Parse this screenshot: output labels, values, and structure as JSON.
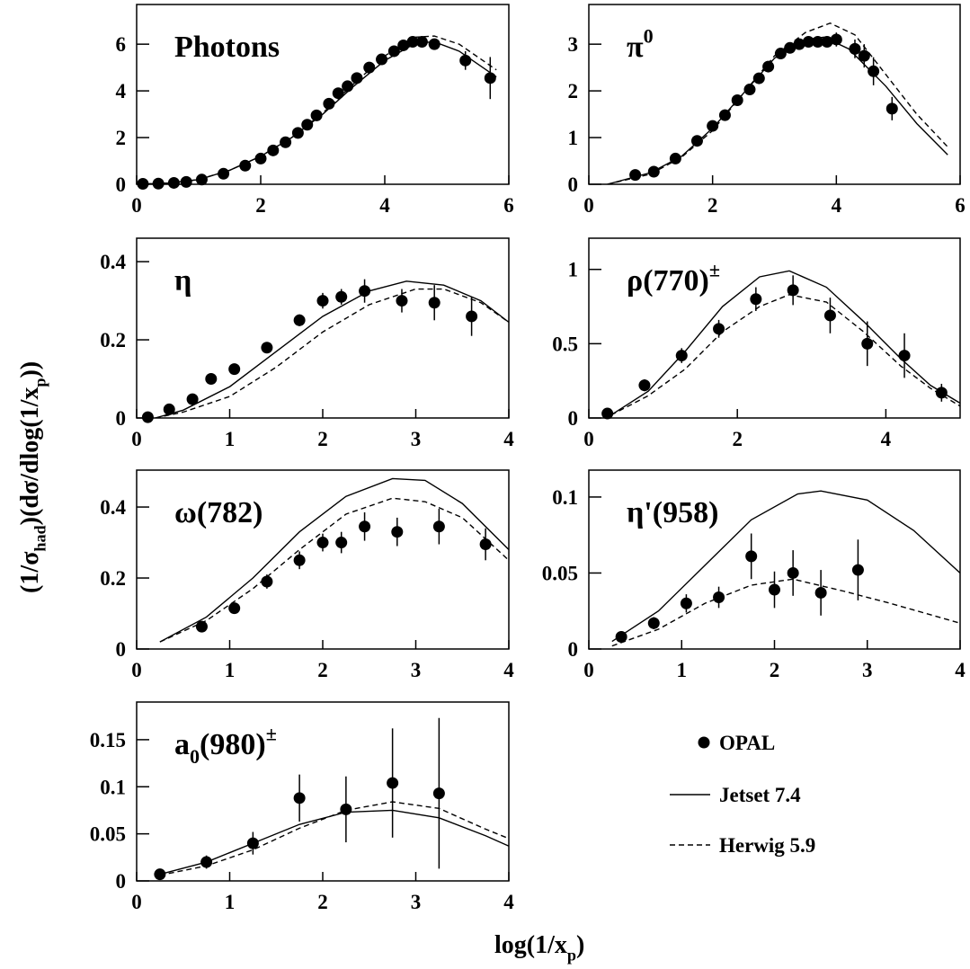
{
  "ylabel": [
    {
      "text": "(1/σ"
    },
    {
      "sub": "had"
    },
    {
      "text": ")(dσ/dlog(1/x"
    },
    {
      "sub": "p"
    },
    {
      "text": "))"
    }
  ],
  "xlabel": [
    {
      "text": "log(1/x"
    },
    {
      "sub": "p"
    },
    {
      "text": ")"
    }
  ],
  "chart_data": [
    {
      "type": "scatter",
      "title": [
        {
          "text": "Photons"
        }
      ],
      "xlim": [
        0,
        6
      ],
      "ylim": [
        0,
        7.7
      ],
      "xticks": [
        0,
        2,
        4,
        6
      ],
      "yticks": [
        0,
        2,
        4,
        6
      ],
      "series": [
        {
          "name": "OPAL",
          "marker": "dot",
          "x": [
            0.1,
            0.35,
            0.6,
            0.8,
            1.05,
            1.4,
            1.75,
            2.0,
            2.2,
            2.4,
            2.6,
            2.75,
            2.9,
            3.1,
            3.25,
            3.4,
            3.55,
            3.75,
            3.95,
            4.15,
            4.3,
            4.45,
            4.6,
            4.8,
            5.3,
            5.7
          ],
          "values": [
            0.02,
            0.03,
            0.06,
            0.1,
            0.2,
            0.45,
            0.8,
            1.1,
            1.45,
            1.8,
            2.2,
            2.55,
            2.95,
            3.45,
            3.9,
            4.2,
            4.55,
            5.0,
            5.35,
            5.7,
            5.95,
            6.1,
            6.1,
            6.0,
            5.3,
            4.55
          ],
          "errors": [
            0,
            0,
            0,
            0,
            0,
            0,
            0,
            0,
            0,
            0,
            0,
            0,
            0,
            0,
            0,
            0,
            0,
            0,
            0,
            0,
            0.15,
            0.15,
            0.2,
            0.2,
            0.4,
            0.9
          ]
        },
        {
          "name": "Jetset 7.4",
          "style": "solid",
          "x": [
            0,
            0.5,
            1,
            1.5,
            2,
            2.5,
            3,
            3.5,
            4,
            4.5,
            4.8,
            5.2,
            5.8
          ],
          "values": [
            0,
            0.05,
            0.2,
            0.6,
            1.2,
            2.0,
            3.0,
            4.2,
            5.3,
            6.05,
            6.1,
            5.7,
            4.6
          ]
        },
        {
          "name": "Herwig 5.9",
          "style": "dashed",
          "x": [
            0,
            0.5,
            1,
            1.5,
            2,
            2.5,
            3,
            3.5,
            4,
            4.5,
            4.8,
            5.2,
            5.8
          ],
          "values": [
            0,
            0.05,
            0.2,
            0.6,
            1.2,
            2.0,
            3.05,
            4.3,
            5.5,
            6.3,
            6.35,
            6.0,
            4.9
          ]
        }
      ]
    },
    {
      "type": "scatter",
      "title": [
        {
          "text": "π"
        },
        {
          "sup": "0"
        }
      ],
      "xlim": [
        0,
        6
      ],
      "ylim": [
        0,
        3.85
      ],
      "xticks": [
        0,
        2,
        4,
        6
      ],
      "yticks": [
        0,
        1,
        2,
        3
      ],
      "series": [
        {
          "marker": "dot",
          "x": [
            0.75,
            1.05,
            1.4,
            1.75,
            2.0,
            2.2,
            2.4,
            2.6,
            2.75,
            2.9,
            3.1,
            3.25,
            3.4,
            3.55,
            3.7,
            3.85,
            4.0,
            4.3,
            4.45,
            4.6,
            4.9
          ],
          "values": [
            0.2,
            0.27,
            0.55,
            0.93,
            1.25,
            1.48,
            1.8,
            2.03,
            2.27,
            2.52,
            2.8,
            2.92,
            3.0,
            3.05,
            3.05,
            3.05,
            3.1,
            2.9,
            2.75,
            2.42,
            1.62
          ],
          "errors": [
            0,
            0,
            0,
            0,
            0,
            0.12,
            0,
            0,
            0,
            0,
            0,
            0,
            0,
            0,
            0,
            0,
            0.15,
            0.2,
            0.25,
            0.3,
            0.25
          ]
        },
        {
          "style": "solid",
          "x": [
            0.3,
            1,
            1.5,
            2,
            2.5,
            3,
            3.5,
            3.8,
            4.2,
            4.8,
            5.3,
            5.8
          ],
          "values": [
            0,
            0.25,
            0.6,
            1.2,
            1.95,
            2.7,
            3.1,
            3.15,
            2.9,
            2.1,
            1.3,
            0.63
          ]
        },
        {
          "style": "dashed",
          "x": [
            0.3,
            1,
            1.5,
            2,
            2.5,
            3,
            3.5,
            3.9,
            4.3,
            4.8,
            5.3,
            5.8
          ],
          "values": [
            0,
            0.22,
            0.58,
            1.15,
            1.95,
            2.75,
            3.25,
            3.45,
            3.2,
            2.35,
            1.5,
            0.8
          ]
        }
      ]
    },
    {
      "type": "scatter",
      "title": [
        {
          "text": "η"
        }
      ],
      "xlim": [
        0,
        4
      ],
      "ylim": [
        0,
        0.46
      ],
      "xticks": [
        0,
        1,
        2,
        3,
        4
      ],
      "yticks": [
        0,
        0.2,
        0.4
      ],
      "series": [
        {
          "marker": "dot",
          "x": [
            0.12,
            0.35,
            0.6,
            0.8,
            1.05,
            1.4,
            1.75,
            2.0,
            2.2,
            2.45,
            2.85,
            3.2,
            3.6
          ],
          "values": [
            0.002,
            0.022,
            0.048,
            0.1,
            0.125,
            0.18,
            0.25,
            0.3,
            0.31,
            0.325,
            0.3,
            0.295,
            0.26
          ],
          "errors": [
            0,
            0,
            0,
            0,
            0,
            0,
            0.015,
            0.02,
            0.02,
            0.03,
            0.03,
            0.045,
            0.05
          ]
        },
        {
          "style": "solid",
          "x": [
            0.2,
            0.5,
            1,
            1.5,
            2,
            2.5,
            2.9,
            3.3,
            3.7,
            4
          ],
          "values": [
            0,
            0.02,
            0.08,
            0.17,
            0.26,
            0.325,
            0.35,
            0.34,
            0.3,
            0.245
          ]
        },
        {
          "style": "dashed",
          "x": [
            0.2,
            0.5,
            1,
            1.5,
            2,
            2.5,
            3,
            3.3,
            3.7,
            4
          ],
          "values": [
            0,
            0.015,
            0.055,
            0.13,
            0.22,
            0.29,
            0.33,
            0.33,
            0.295,
            0.245
          ]
        }
      ]
    },
    {
      "type": "scatter",
      "title": [
        {
          "text": "ρ(770)"
        },
        {
          "sup": "±"
        }
      ],
      "xlim": [
        0,
        5
      ],
      "ylim": [
        0,
        1.21
      ],
      "xticks": [
        0,
        2,
        4
      ],
      "yticks": [
        0,
        0.5,
        1
      ],
      "series": [
        {
          "marker": "dot",
          "x": [
            0.25,
            0.75,
            1.25,
            1.75,
            2.25,
            2.75,
            3.25,
            3.75,
            4.25,
            4.75
          ],
          "values": [
            0.03,
            0.22,
            0.42,
            0.6,
            0.8,
            0.86,
            0.69,
            0.5,
            0.42,
            0.17
          ],
          "errors": [
            0,
            0.04,
            0.05,
            0.06,
            0.08,
            0.1,
            0.12,
            0.15,
            0.15,
            0.06
          ]
        },
        {
          "style": "solid",
          "x": [
            0.3,
            0.8,
            1.3,
            1.8,
            2.3,
            2.7,
            3.2,
            3.7,
            4.2,
            4.6,
            5
          ],
          "values": [
            0.02,
            0.18,
            0.45,
            0.75,
            0.95,
            0.99,
            0.88,
            0.65,
            0.4,
            0.22,
            0.1
          ]
        },
        {
          "style": "dashed",
          "x": [
            0.3,
            0.8,
            1.3,
            1.8,
            2.3,
            2.7,
            3.2,
            3.7,
            4.2,
            4.6,
            5
          ],
          "values": [
            0.02,
            0.15,
            0.33,
            0.58,
            0.75,
            0.83,
            0.78,
            0.58,
            0.35,
            0.2,
            0.08
          ]
        }
      ]
    },
    {
      "type": "scatter",
      "title": [
        {
          "text": "ω(782)"
        }
      ],
      "xlim": [
        0,
        4
      ],
      "ylim": [
        0,
        0.504
      ],
      "xticks": [
        0,
        1,
        2,
        3,
        4
      ],
      "yticks": [
        0,
        0.2,
        0.4
      ],
      "series": [
        {
          "marker": "dot",
          "x": [
            0.7,
            1.05,
            1.4,
            1.75,
            2.0,
            2.2,
            2.45,
            2.8,
            3.25,
            3.75
          ],
          "values": [
            0.063,
            0.115,
            0.19,
            0.25,
            0.3,
            0.3,
            0.345,
            0.33,
            0.345,
            0.295
          ],
          "errors": [
            0.01,
            0.01,
            0.02,
            0.025,
            0.025,
            0.03,
            0.04,
            0.04,
            0.05,
            0.045
          ]
        },
        {
          "style": "solid",
          "x": [
            0.25,
            0.75,
            1.25,
            1.75,
            2.25,
            2.75,
            3.1,
            3.5,
            4
          ],
          "values": [
            0.02,
            0.09,
            0.2,
            0.33,
            0.43,
            0.48,
            0.475,
            0.41,
            0.28
          ]
        },
        {
          "style": "dashed",
          "x": [
            0.25,
            0.75,
            1.25,
            1.75,
            2.25,
            2.75,
            3.1,
            3.5,
            4
          ],
          "values": [
            0.02,
            0.08,
            0.17,
            0.28,
            0.38,
            0.425,
            0.415,
            0.37,
            0.25
          ]
        }
      ]
    },
    {
      "type": "scatter",
      "title": [
        {
          "text": "η'(958)"
        }
      ],
      "xlim": [
        0,
        4
      ],
      "ylim": [
        0,
        0.1177
      ],
      "xticks": [
        0,
        1,
        2,
        3,
        4
      ],
      "yticks": [
        0,
        0.05,
        0.1
      ],
      "series": [
        {
          "marker": "dot",
          "x": [
            0.35,
            0.7,
            1.05,
            1.4,
            1.75,
            2.0,
            2.2,
            2.5,
            2.9
          ],
          "values": [
            0.008,
            0.017,
            0.03,
            0.034,
            0.061,
            0.039,
            0.05,
            0.037,
            0.052
          ],
          "errors": [
            0.003,
            0.004,
            0.006,
            0.007,
            0.015,
            0.012,
            0.015,
            0.015,
            0.02
          ]
        },
        {
          "style": "solid",
          "x": [
            0.25,
            0.75,
            1.25,
            1.75,
            2.25,
            2.5,
            3,
            3.5,
            4
          ],
          "values": [
            0.005,
            0.025,
            0.055,
            0.085,
            0.102,
            0.104,
            0.098,
            0.078,
            0.05
          ]
        },
        {
          "style": "dashed",
          "x": [
            0.25,
            0.75,
            1.25,
            1.75,
            2.2,
            2.75,
            3.25,
            4
          ],
          "values": [
            0.002,
            0.013,
            0.03,
            0.042,
            0.046,
            0.038,
            0.03,
            0.017
          ]
        }
      ]
    },
    {
      "type": "scatter",
      "title": [
        {
          "text": "a"
        },
        {
          "sub": "0"
        },
        {
          "text": "(980)"
        },
        {
          "sup": "±"
        }
      ],
      "xlim": [
        0,
        4
      ],
      "ylim": [
        0,
        0.19
      ],
      "xticks": [
        0,
        1,
        2,
        3,
        4
      ],
      "yticks": [
        0,
        0.05,
        0.1,
        0.15
      ],
      "series": [
        {
          "marker": "dot",
          "x": [
            0.25,
            0.75,
            1.25,
            1.75,
            2.25,
            2.75,
            3.25
          ],
          "values": [
            0.007,
            0.02,
            0.04,
            0.088,
            0.076,
            0.104,
            0.093
          ],
          "errors": [
            0.002,
            0.007,
            0.012,
            0.025,
            0.035,
            0.058,
            0.08
          ]
        },
        {
          "style": "solid",
          "x": [
            0.25,
            0.75,
            1.25,
            1.75,
            2.25,
            2.75,
            3.25,
            3.75,
            4
          ],
          "values": [
            0.007,
            0.02,
            0.04,
            0.06,
            0.073,
            0.075,
            0.067,
            0.048,
            0.037
          ]
        },
        {
          "style": "dashed",
          "x": [
            0.25,
            0.75,
            1.25,
            1.75,
            2.25,
            2.75,
            3.25,
            3.75,
            4
          ],
          "values": [
            0.006,
            0.016,
            0.033,
            0.056,
            0.075,
            0.084,
            0.077,
            0.055,
            0.045
          ]
        }
      ]
    }
  ]
}
